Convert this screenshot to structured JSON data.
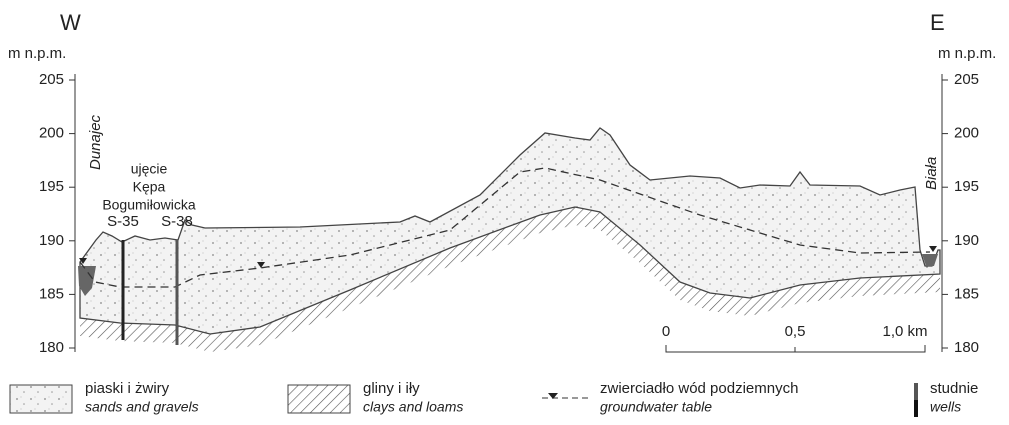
{
  "header": {
    "west": "W",
    "east": "E"
  },
  "axis": {
    "unit_left": "m n.p.m.",
    "unit_right": "m n.p.m.",
    "ticks": [
      205,
      200,
      195,
      190,
      185,
      180
    ]
  },
  "labels": {
    "river_west": "Dunajec",
    "river_east": "Biała",
    "intake": [
      "ujęcie",
      "Kępa",
      "Bogumiłowicka"
    ],
    "wells": [
      "S-35",
      "S-38"
    ]
  },
  "scale": {
    "ticks": [
      "0",
      "0,5",
      "1,0 km"
    ]
  },
  "legend": [
    {
      "title": "piaski i  żwiry",
      "subtitle": "sands and gravels"
    },
    {
      "title": "gliny i iły",
      "subtitle": "clays and loams"
    },
    {
      "title": "zwierciadło wód podziemnych",
      "subtitle": "groundwater table"
    },
    {
      "title": "studnie",
      "subtitle": "wells"
    }
  ]
}
